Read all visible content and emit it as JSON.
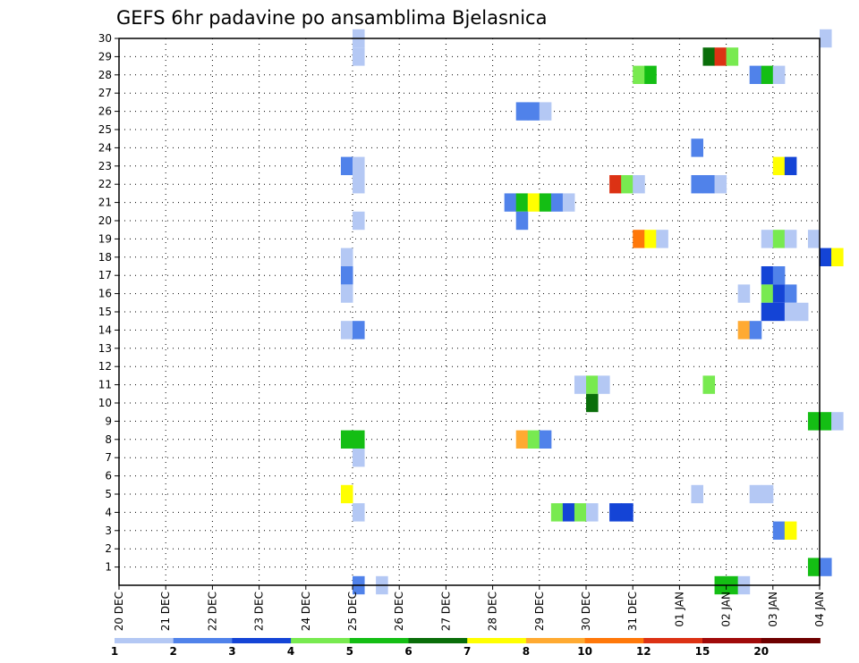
{
  "chart_data": {
    "type": "heatmap",
    "title": "GEFS 6hr padavine po ansamblima Bjelasnica",
    "x_labels": [
      "20 DEC",
      "21 DEC",
      "22 DEC",
      "23 DEC",
      "24 DEC",
      "25 DEC",
      "26 DEC",
      "27 DEC",
      "28 DEC",
      "29 DEC",
      "30 DEC",
      "31 DEC",
      "01 JAN",
      "02 JAN",
      "03 JAN",
      "04 JAN"
    ],
    "x_range_days": [
      0,
      15
    ],
    "y_labels": [
      "1",
      "2",
      "3",
      "4",
      "5",
      "6",
      "7",
      "8",
      "9",
      "10",
      "11",
      "12",
      "13",
      "14",
      "15",
      "16",
      "17",
      "18",
      "19",
      "20",
      "21",
      "22",
      "23",
      "24",
      "25",
      "26",
      "27",
      "28",
      "29",
      "30"
    ],
    "y_range": [
      0,
      30
    ],
    "grid": true,
    "legend": {
      "placement": "bottom",
      "thresholds": [
        "1",
        "2",
        "3",
        "4",
        "5",
        "6",
        "7",
        "8",
        "10",
        "12",
        "15",
        "20"
      ],
      "colors": [
        "#b4c8f4",
        "#5082ea",
        "#1444d6",
        "#78ea50",
        "#14be14",
        "#0a6e0a",
        "#ffff00",
        "#ffaa32",
        "#ff780a",
        "#dc3214",
        "#a00a0a",
        "#6e0000"
      ]
    },
    "cells": [
      [
        5,
        30,
        0
      ],
      [
        5,
        29,
        0
      ],
      [
        15,
        30,
        0
      ],
      [
        12.5,
        29,
        5
      ],
      [
        12.75,
        29,
        9
      ],
      [
        13,
        29,
        3
      ],
      [
        11,
        28,
        3
      ],
      [
        11.25,
        28,
        4
      ],
      [
        13.5,
        28,
        1
      ],
      [
        13.75,
        28,
        4
      ],
      [
        14,
        28,
        0
      ],
      [
        8.5,
        26,
        1
      ],
      [
        8.75,
        26,
        1
      ],
      [
        9,
        26,
        0
      ],
      [
        12.25,
        24,
        1
      ],
      [
        4.75,
        23,
        1
      ],
      [
        5,
        23,
        0
      ],
      [
        14,
        23,
        6
      ],
      [
        14.25,
        23,
        2
      ],
      [
        5,
        22,
        0
      ],
      [
        10.5,
        22,
        9
      ],
      [
        10.75,
        22,
        3
      ],
      [
        11,
        22,
        0
      ],
      [
        12.25,
        22,
        1
      ],
      [
        12.5,
        22,
        1
      ],
      [
        12.75,
        22,
        0
      ],
      [
        8.25,
        21,
        1
      ],
      [
        8.5,
        21,
        4
      ],
      [
        8.75,
        21,
        6
      ],
      [
        9,
        21,
        4
      ],
      [
        9.25,
        21,
        1
      ],
      [
        9.5,
        21,
        0
      ],
      [
        5,
        20,
        0
      ],
      [
        8.5,
        20,
        1
      ],
      [
        11,
        19,
        8
      ],
      [
        11.25,
        19,
        6
      ],
      [
        11.5,
        19,
        0
      ],
      [
        13.75,
        19,
        0
      ],
      [
        14,
        19,
        3
      ],
      [
        14.25,
        19,
        0
      ],
      [
        14.75,
        19,
        0
      ],
      [
        4.75,
        18,
        0
      ],
      [
        15,
        18,
        2
      ],
      [
        15.25,
        18,
        6
      ],
      [
        4.75,
        17,
        1
      ],
      [
        13.75,
        17,
        2
      ],
      [
        14,
        17,
        1
      ],
      [
        4.75,
        16,
        0
      ],
      [
        13.25,
        16,
        0
      ],
      [
        13.75,
        16,
        3
      ],
      [
        14,
        16,
        2
      ],
      [
        14.25,
        16,
        1
      ],
      [
        13.75,
        15,
        2
      ],
      [
        14,
        15,
        2
      ],
      [
        14.25,
        15,
        0
      ],
      [
        14.5,
        15,
        0
      ],
      [
        4.75,
        14,
        0
      ],
      [
        5,
        14,
        1
      ],
      [
        13.25,
        14,
        7
      ],
      [
        13.5,
        14,
        1
      ],
      [
        9.75,
        11,
        0
      ],
      [
        10,
        11,
        3
      ],
      [
        10.25,
        11,
        0
      ],
      [
        12.5,
        11,
        3
      ],
      [
        10,
        10,
        5
      ],
      [
        14.75,
        9,
        4
      ],
      [
        15,
        9,
        4
      ],
      [
        15.25,
        9,
        0
      ],
      [
        4.75,
        8,
        4
      ],
      [
        5,
        8,
        4
      ],
      [
        8.5,
        8,
        7
      ],
      [
        8.75,
        8,
        3
      ],
      [
        9,
        8,
        1
      ],
      [
        5,
        7,
        0
      ],
      [
        4.75,
        5,
        6
      ],
      [
        12.25,
        5,
        0
      ],
      [
        13.5,
        5,
        0
      ],
      [
        13.75,
        5,
        0
      ],
      [
        5,
        4,
        0
      ],
      [
        9.25,
        4,
        3
      ],
      [
        9.5,
        4,
        2
      ],
      [
        9.75,
        4,
        3
      ],
      [
        10,
        4,
        0
      ],
      [
        10.5,
        4,
        2
      ],
      [
        10.75,
        4,
        2
      ],
      [
        14,
        3,
        1
      ],
      [
        14.25,
        3,
        6
      ],
      [
        14.75,
        1,
        4
      ],
      [
        15,
        1,
        1
      ],
      [
        5,
        0,
        1
      ],
      [
        5.5,
        0,
        0
      ],
      [
        12.75,
        0,
        4
      ],
      [
        13,
        0,
        4
      ],
      [
        13.25,
        0,
        0
      ]
    ]
  }
}
